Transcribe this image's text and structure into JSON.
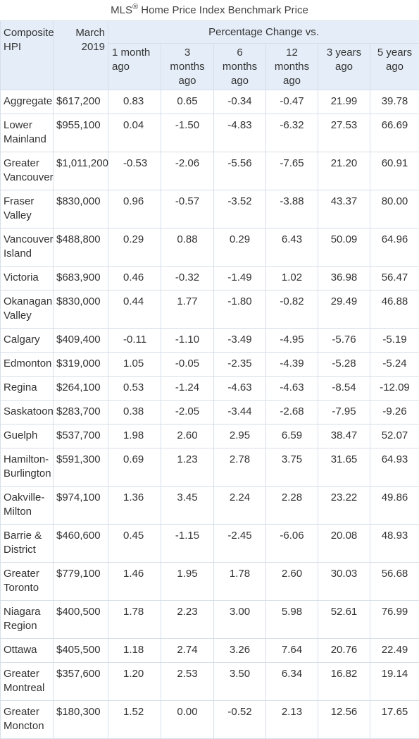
{
  "caption": {
    "prefix": "MLS",
    "sup": "®",
    "suffix": " Home Price Index Benchmark Price"
  },
  "headers": {
    "composite": "Composite\nHPI",
    "march": "March\n2019",
    "percentage_change": "Percentage Change vs.",
    "periods": [
      "1 month\nago",
      "3\nmonths\nago",
      "6\nmonths\nago",
      "12\nmonths\nago",
      "3 years\nago",
      "5 years\nago"
    ]
  },
  "rows": [
    {
      "name": "Aggregate",
      "price": "$617,200",
      "m1": "0.83",
      "m3": "0.65",
      "m6": "-0.34",
      "m12": "-0.47",
      "y3": "21.99",
      "y5": "39.78",
      "lines": 1
    },
    {
      "name": "Lower Mainland",
      "price": "$955,100",
      "m1": "0.04",
      "m3": "-1.50",
      "m6": "-4.83",
      "m12": "-6.32",
      "y3": "27.53",
      "y5": "66.69",
      "lines": 2
    },
    {
      "name": "Greater Vancouver",
      "price": "$1,011,200",
      "m1": "-0.53",
      "m3": "-2.06",
      "m6": "-5.56",
      "m12": "-7.65",
      "y3": "21.20",
      "y5": "60.91",
      "lines": 2
    },
    {
      "name": "Fraser Valley",
      "price": "$830,000",
      "m1": "0.96",
      "m3": "-0.57",
      "m6": "-3.52",
      "m12": "-3.88",
      "y3": "43.37",
      "y5": "80.00",
      "lines": 2
    },
    {
      "name": "Vancouver Island",
      "price": "$488,800",
      "m1": "0.29",
      "m3": "0.88",
      "m6": "0.29",
      "m12": "6.43",
      "y3": "50.09",
      "y5": "64.96",
      "lines": 2
    },
    {
      "name": "Victoria",
      "price": "$683,900",
      "m1": "0.46",
      "m3": "-0.32",
      "m6": "-1.49",
      "m12": "1.02",
      "y3": "36.98",
      "y5": "56.47",
      "lines": 1
    },
    {
      "name": "Okanagan Valley",
      "price": "$830,000",
      "m1": "0.44",
      "m3": "1.77",
      "m6": "-1.80",
      "m12": "-0.82",
      "y3": "29.49",
      "y5": "46.88",
      "lines": 2
    },
    {
      "name": "Calgary",
      "price": "$409,400",
      "m1": "-0.11",
      "m3": "-1.10",
      "m6": "-3.49",
      "m12": "-4.95",
      "y3": "-5.76",
      "y5": "-5.19",
      "lines": 1
    },
    {
      "name": "Edmonton",
      "price": "$319,000",
      "m1": "1.05",
      "m3": "-0.05",
      "m6": "-2.35",
      "m12": "-4.39",
      "y3": "-5.28",
      "y5": "-5.24",
      "lines": 1
    },
    {
      "name": "Regina",
      "price": "$264,100",
      "m1": "0.53",
      "m3": "-1.24",
      "m6": "-4.63",
      "m12": "-4.63",
      "y3": "-8.54",
      "y5": "-12.09",
      "lines": 1
    },
    {
      "name": "Saskatoon",
      "price": "$283,700",
      "m1": "0.38",
      "m3": "-2.05",
      "m6": "-3.44",
      "m12": "-2.68",
      "y3": "-7.95",
      "y5": "-9.26",
      "lines": 1
    },
    {
      "name": "Guelph",
      "price": "$537,700",
      "m1": "1.98",
      "m3": "2.60",
      "m6": "2.95",
      "m12": "6.59",
      "y3": "38.47",
      "y5": "52.07",
      "lines": 1
    },
    {
      "name": "Hamilton-Burlington",
      "price": "$591,300",
      "m1": "0.69",
      "m3": "1.23",
      "m6": "2.78",
      "m12": "3.75",
      "y3": "31.65",
      "y5": "64.93",
      "lines": 2
    },
    {
      "name": "Oakville-Milton",
      "price": "$974,100",
      "m1": "1.36",
      "m3": "3.45",
      "m6": "2.24",
      "m12": "2.28",
      "y3": "23.22",
      "y5": "49.86",
      "lines": 2
    },
    {
      "name": "Barrie & District",
      "price": "$460,600",
      "m1": "0.45",
      "m3": "-1.15",
      "m6": "-2.45",
      "m12": "-6.06",
      "y3": "20.08",
      "y5": "48.93",
      "lines": 2
    },
    {
      "name": "Greater Toronto",
      "price": "$779,100",
      "m1": "1.46",
      "m3": "1.95",
      "m6": "1.78",
      "m12": "2.60",
      "y3": "30.03",
      "y5": "56.68",
      "lines": 2
    },
    {
      "name": "Niagara Region",
      "price": "$400,500",
      "m1": "1.78",
      "m3": "2.23",
      "m6": "3.00",
      "m12": "5.98",
      "y3": "52.61",
      "y5": "76.99",
      "lines": 2
    },
    {
      "name": "Ottawa",
      "price": "$405,500",
      "m1": "1.18",
      "m3": "2.74",
      "m6": "3.26",
      "m12": "7.64",
      "y3": "20.76",
      "y5": "22.49",
      "lines": 1
    },
    {
      "name": "Greater Montreal",
      "price": "$357,600",
      "m1": "1.20",
      "m3": "2.53",
      "m6": "3.50",
      "m12": "6.34",
      "y3": "16.82",
      "y5": "19.14",
      "lines": 2
    },
    {
      "name": "Greater Moncton",
      "price": "$180,300",
      "m1": "1.52",
      "m3": "0.00",
      "m6": "-0.52",
      "m12": "2.13",
      "y3": "12.56",
      "y5": "17.65",
      "lines": 2
    }
  ]
}
